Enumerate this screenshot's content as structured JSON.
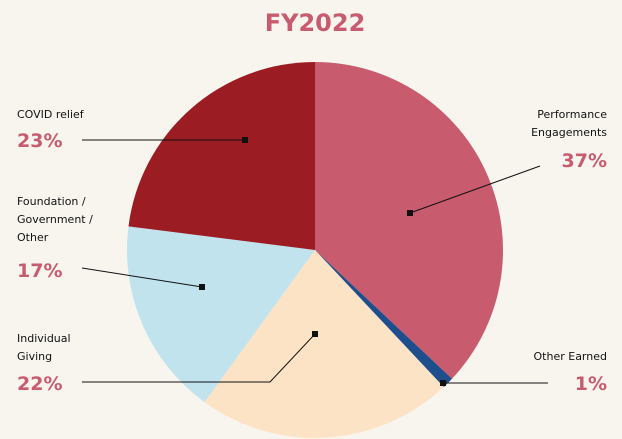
{
  "chart_data": {
    "type": "pie",
    "title": "FY2022",
    "categories": [
      "Performance\nEngagements",
      "Other Earned",
      "Individual\nGiving",
      "Foundation /\nGovernment /\nOther",
      "COVID relief"
    ],
    "values": [
      37,
      1,
      22,
      17,
      23
    ],
    "value_labels": [
      "37%",
      "1%",
      "22%",
      "17%",
      "23%"
    ],
    "colors": [
      "#c95b6e",
      "#1f4e8c",
      "#fde3c6",
      "#c0e3ee",
      "#9b1c22"
    ],
    "label_color": "#c95b6e"
  }
}
